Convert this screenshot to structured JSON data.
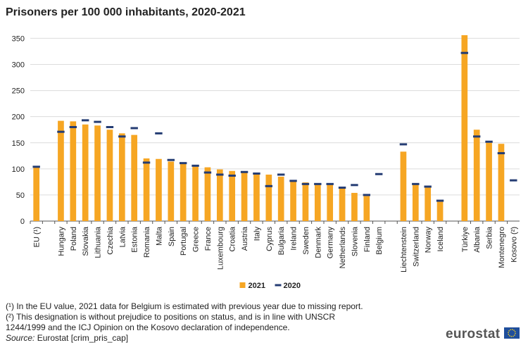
{
  "chart_data": {
    "type": "bar",
    "title": "Prisoners per 100 000 inhabitants, 2020-2021",
    "categories": [
      "EU (¹)",
      null,
      "Hungary",
      "Poland",
      "Slovakia",
      "Lithuania",
      "Czechia",
      "Latvia",
      "Estonia",
      "Romania",
      "Malta",
      "Spain",
      "Portugal",
      "Greece",
      "France",
      "Luxembourg",
      "Croatia",
      "Austria",
      "Italy",
      "Cyprus",
      "Bulgaria",
      "Ireland",
      "Sweden",
      "Denmark",
      "Germany",
      "Netherlands",
      "Slovenia",
      "Finland",
      "Belgium",
      null,
      "Liechtenstein",
      "Switzerland",
      "Norway",
      "Iceland",
      null,
      "Türkiye",
      "Albania",
      "Serbia",
      "Montenegro",
      "Kosovo (²)"
    ],
    "series": [
      {
        "name": "2021",
        "color": "#f6a623",
        "mark": "bar",
        "values": [
          104,
          null,
          192,
          191,
          185,
          183,
          175,
          168,
          165,
          120,
          119,
          114,
          112,
          104,
          103,
          99,
          96,
          95,
          92,
          89,
          85,
          76,
          74,
          72,
          70,
          63,
          54,
          48,
          null,
          null,
          133,
          72,
          64,
          37,
          null,
          356,
          175,
          150,
          148,
          null
        ]
      },
      {
        "name": "2020",
        "color": "#243c73",
        "mark": "dash",
        "values": [
          104,
          null,
          171,
          180,
          193,
          190,
          180,
          162,
          178,
          112,
          168,
          117,
          111,
          106,
          93,
          89,
          87,
          94,
          91,
          67,
          89,
          77,
          71,
          71,
          71,
          64,
          69,
          50,
          90,
          null,
          147,
          71,
          66,
          39,
          null,
          322,
          162,
          152,
          130,
          78
        ]
      }
    ],
    "ylim": [
      0,
      360
    ],
    "yticks": [
      0,
      50,
      100,
      150,
      200,
      250,
      300,
      350
    ],
    "grid": true,
    "legend": "bottom"
  },
  "footnotes": [
    "(¹) In the EU value, 2021 data for Belgium is estimated with previous year due to missing report.",
    "(²) This designation is without prejudice to positions on status, and is in line with UNSCR 1244/1999 and the ICJ Opinion on the Kosovo declaration of independence."
  ],
  "source": {
    "label": "Source:",
    "text": "Eurostat [crim_pris_cap]"
  },
  "logo": "eurostat"
}
